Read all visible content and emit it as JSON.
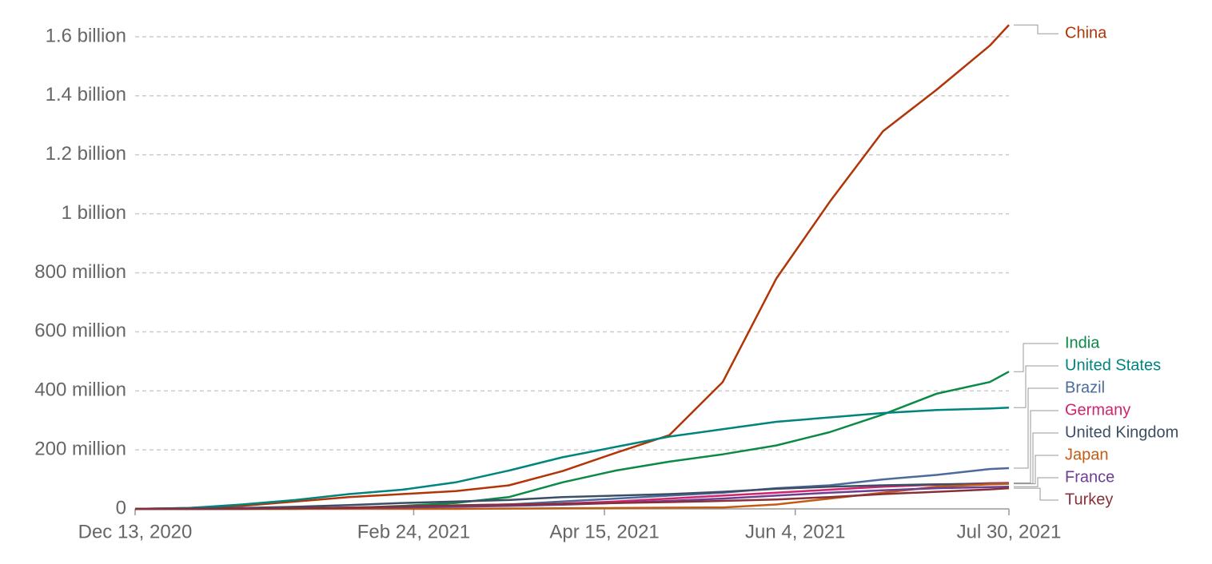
{
  "chart_data": {
    "type": "line",
    "x": [
      "2020-12-13",
      "2020-12-27",
      "2021-01-10",
      "2021-01-24",
      "2021-02-07",
      "2021-02-21",
      "2021-03-07",
      "2021-03-21",
      "2021-04-04",
      "2021-04-18",
      "2021-05-02",
      "2021-05-16",
      "2021-05-30",
      "2021-06-13",
      "2021-06-27",
      "2021-07-11",
      "2021-07-25",
      "2021-07-30"
    ],
    "xlim": [
      "2020-12-13",
      "2021-07-30"
    ],
    "xticks": [
      {
        "value": "2020-12-13",
        "label": "Dec 13, 2020"
      },
      {
        "value": "2021-02-24",
        "label": "Feb 24, 2021"
      },
      {
        "value": "2021-04-15",
        "label": "Apr 15, 2021"
      },
      {
        "value": "2021-06-04",
        "label": "Jun 4, 2021"
      },
      {
        "value": "2021-07-30",
        "label": "Jul 30, 2021"
      }
    ],
    "ylim": [
      0,
      1600
    ],
    "yticks": [
      0,
      {
        "value": 200,
        "label": "200 million"
      },
      {
        "value": 400,
        "label": "400 million"
      },
      {
        "value": 600,
        "label": "600 million"
      },
      {
        "value": 800,
        "label": "800 million"
      },
      {
        "value": 1000,
        "label": "1 billion"
      },
      {
        "value": 1200,
        "label": "1.2 billion"
      },
      {
        "value": 1400,
        "label": "1.4 billion"
      },
      {
        "value": 1600,
        "label": "1.6 billion"
      }
    ],
    "grid": true,
    "series": [
      {
        "name": "China",
        "color": "#b13507",
        "values": [
          0,
          3,
          10,
          25,
          40,
          50,
          60,
          80,
          128,
          190,
          250,
          430,
          780,
          1040,
          1280,
          1420,
          1570,
          1640
        ]
      },
      {
        "name": "India",
        "color": "#0a8a46",
        "values": [
          0,
          0,
          0,
          0,
          3,
          10,
          20,
          40,
          90,
          130,
          160,
          185,
          215,
          260,
          320,
          390,
          430,
          465
        ]
      },
      {
        "name": "United States",
        "color": "#00847e",
        "values": [
          0,
          3,
          15,
          30,
          50,
          65,
          90,
          130,
          175,
          210,
          245,
          270,
          295,
          310,
          325,
          335,
          340,
          343
        ]
      },
      {
        "name": "Brazil",
        "color": "#4c6a9c",
        "values": [
          0,
          0,
          0,
          2,
          5,
          8,
          12,
          15,
          25,
          35,
          45,
          55,
          70,
          80,
          100,
          115,
          135,
          138
        ]
      },
      {
        "name": "Germany",
        "color": "#d1246c",
        "values": [
          0,
          0,
          1,
          2,
          4,
          6,
          9,
          12,
          18,
          25,
          35,
          45,
          55,
          65,
          75,
          82,
          87,
          88
        ]
      },
      {
        "name": "United Kingdom",
        "color": "#3c4e66",
        "values": [
          0,
          1,
          3,
          7,
          13,
          20,
          25,
          30,
          40,
          45,
          50,
          58,
          68,
          75,
          80,
          83,
          85,
          86
        ]
      },
      {
        "name": "Japan",
        "color": "#c15d13",
        "values": [
          0,
          0,
          0,
          0,
          0,
          0,
          0,
          1,
          2,
          3,
          4,
          5,
          15,
          35,
          55,
          75,
          83,
          85
        ]
      },
      {
        "name": "France",
        "color": "#6d3e91",
        "values": [
          0,
          0,
          1,
          2,
          3,
          5,
          7,
          10,
          14,
          20,
          27,
          35,
          45,
          55,
          63,
          70,
          74,
          75
        ]
      },
      {
        "name": "Turkey",
        "color": "#883039",
        "values": [
          0,
          0,
          0,
          2,
          4,
          8,
          12,
          15,
          17,
          20,
          23,
          27,
          32,
          40,
          50,
          58,
          66,
          70
        ]
      }
    ]
  }
}
